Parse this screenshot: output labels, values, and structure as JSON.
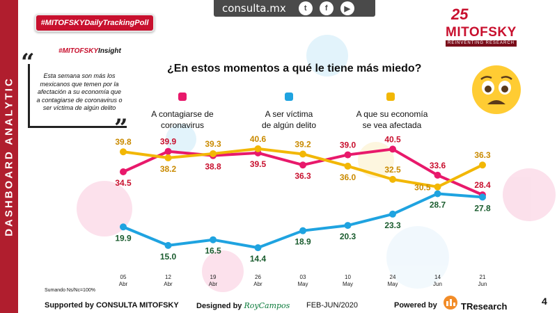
{
  "sidebar": {
    "label": "DASHBOARD ANALYTIC"
  },
  "topbar": {
    "site": "consulta.mx",
    "social": [
      {
        "icon": "twitter-icon",
        "glyph": "t"
      },
      {
        "icon": "facebook-icon",
        "glyph": "f"
      },
      {
        "icon": "youtube-icon",
        "glyph": "▶"
      }
    ]
  },
  "badge": {
    "label": "#MITOFSKYDailyTrackingPoll"
  },
  "insight": {
    "hash": "#MITOFSKY",
    "word": "Insight",
    "text": "Esta semana son más los mexicanos que temen por la afectación a su economía que a contagiarse de coronavirus o ser víctima de algún delito"
  },
  "logo": {
    "number": "25",
    "name": "MITOFSKY",
    "tagline": "REINVENTING RESEARCH"
  },
  "footer": {
    "note": "Sumando Ns/Nc=100%",
    "supported": "Supported by CONSULTA MITOFSKY",
    "designed_prefix": "Designed by",
    "designed_name": "RoyCampos",
    "period": "FEB-JUN/2020",
    "powered": "Powered by",
    "powered_brand": "TResearch",
    "page": "4"
  },
  "colors": {
    "pink": "#e8196b",
    "blue": "#1fa3e0",
    "yellow": "#f2b705",
    "red": "#c8102e"
  },
  "chart_data": {
    "type": "line",
    "title": "¿En estos momentos a qué le tiene más miedo?",
    "x": [
      {
        "day": "05",
        "month": "Abr"
      },
      {
        "day": "12",
        "month": "Abr"
      },
      {
        "day": "19",
        "month": "Abr"
      },
      {
        "day": "26",
        "month": "Abr"
      },
      {
        "day": "03",
        "month": "May"
      },
      {
        "day": "10",
        "month": "May"
      },
      {
        "day": "24",
        "month": "May"
      },
      {
        "day": "14",
        "month": "Jun"
      },
      {
        "day": "21",
        "month": "Jun"
      }
    ],
    "ylim": [
      10,
      45
    ],
    "series": [
      {
        "name": "A contagiarse de coronavirus",
        "lines": [
          "A contagiarse de",
          "coronavirus"
        ],
        "color": "#e8196b",
        "label_color": "#c8102e",
        "values": [
          34.5,
          39.9,
          38.8,
          39.5,
          36.3,
          39.0,
          40.5,
          33.6,
          28.4
        ],
        "label_pos": [
          "below",
          "above",
          "below",
          "below",
          "below",
          "above",
          "above",
          "above",
          "above"
        ]
      },
      {
        "name": "A ser víctima de algún delito",
        "lines": [
          "A ser víctima",
          "de algún delito"
        ],
        "color": "#1fa3e0",
        "label_color": "#1a5c2e",
        "values": [
          19.9,
          15.0,
          16.5,
          14.4,
          18.9,
          20.3,
          23.3,
          28.7,
          27.8
        ],
        "label_pos": [
          "below",
          "below",
          "below",
          "below",
          "below",
          "below",
          "below",
          "below",
          "below"
        ]
      },
      {
        "name": "A que su economía se vea afectada",
        "lines": [
          "A que su economía",
          "se vea afectada"
        ],
        "color": "#f2b705",
        "label_color": "#c98a00",
        "values": [
          39.8,
          38.2,
          39.3,
          40.6,
          39.2,
          36.0,
          32.5,
          30.5,
          36.3
        ],
        "label_pos": [
          "above",
          "below",
          "above",
          "above",
          "above",
          "below",
          "above",
          "left",
          "above"
        ]
      }
    ],
    "legend_position": "top"
  }
}
